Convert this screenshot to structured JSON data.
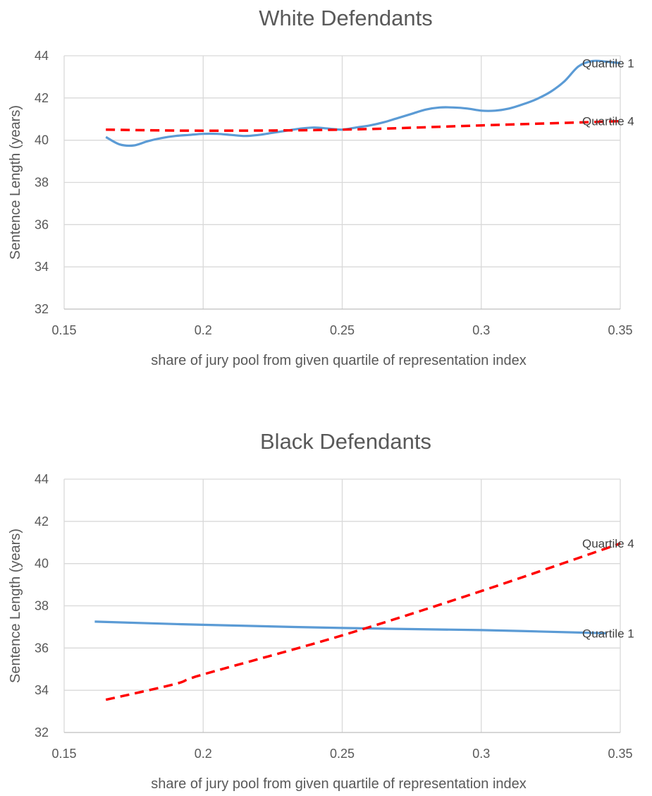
{
  "chart_data": [
    {
      "type": "line",
      "title": "White Defendants",
      "xlabel": "share of jury pool from given quartile of representation index",
      "ylabel": "Sentence Length (years)",
      "xlim": [
        0.15,
        0.35
      ],
      "ylim": [
        32,
        44
      ],
      "xticks": [
        "0.15",
        "0.2",
        "0.25",
        "0.3",
        "0.35"
      ],
      "yticks": [
        "32",
        "34",
        "36",
        "38",
        "40",
        "42",
        "44"
      ],
      "grid": true,
      "legend": "none (series labelled at line ends)",
      "series": [
        {
          "name": "Quartile 1",
          "color": "#5b9bd5",
          "style": "solid",
          "x": [
            0.165,
            0.17,
            0.175,
            0.18,
            0.185,
            0.19,
            0.195,
            0.2,
            0.205,
            0.21,
            0.215,
            0.22,
            0.225,
            0.23,
            0.235,
            0.24,
            0.245,
            0.25,
            0.255,
            0.26,
            0.265,
            0.27,
            0.275,
            0.28,
            0.285,
            0.29,
            0.295,
            0.3,
            0.305,
            0.31,
            0.315,
            0.32,
            0.325,
            0.33,
            0.335,
            0.34,
            0.345,
            0.35
          ],
          "y": [
            40.15,
            39.8,
            39.75,
            39.95,
            40.1,
            40.2,
            40.25,
            40.3,
            40.3,
            40.25,
            40.2,
            40.25,
            40.35,
            40.45,
            40.55,
            40.6,
            40.55,
            40.5,
            40.6,
            40.7,
            40.85,
            41.05,
            41.25,
            41.45,
            41.55,
            41.55,
            41.5,
            41.4,
            41.4,
            41.5,
            41.7,
            41.95,
            42.3,
            42.8,
            43.5,
            43.75,
            43.72,
            43.65
          ]
        },
        {
          "name": "Quartile 4",
          "color": "#ff0000",
          "style": "dashed",
          "x": [
            0.165,
            0.2,
            0.25,
            0.3,
            0.35
          ],
          "y": [
            40.5,
            40.45,
            40.5,
            40.7,
            40.9
          ]
        }
      ]
    },
    {
      "type": "line",
      "title": "Black Defendants",
      "xlabel": "share of jury pool from given quartile of representation index",
      "ylabel": "Sentence Length (years)",
      "xlim": [
        0.15,
        0.35
      ],
      "ylim": [
        32,
        44
      ],
      "xticks": [
        "0.15",
        "0.2",
        "0.25",
        "0.3",
        "0.35"
      ],
      "yticks": [
        "32",
        "34",
        "36",
        "38",
        "40",
        "42",
        "44"
      ],
      "grid": true,
      "legend": "none (series labelled at line ends)",
      "series": [
        {
          "name": "Quartile 1",
          "color": "#5b9bd5",
          "style": "solid",
          "x": [
            0.161,
            0.2,
            0.25,
            0.3,
            0.345
          ],
          "y": [
            37.25,
            37.1,
            36.95,
            36.85,
            36.7
          ]
        },
        {
          "name": "Quartile 4",
          "color": "#ff0000",
          "style": "dashed",
          "x": [
            0.165,
            0.19,
            0.2,
            0.25,
            0.3,
            0.35
          ],
          "y": [
            33.55,
            34.3,
            34.75,
            36.6,
            38.7,
            40.95
          ]
        }
      ]
    }
  ]
}
